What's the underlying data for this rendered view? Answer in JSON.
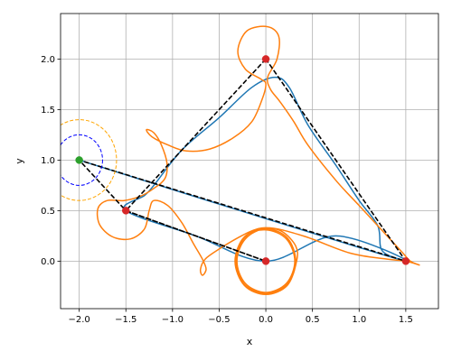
{
  "chart_data": {
    "type": "line",
    "title": "",
    "xlabel": "x",
    "ylabel": "y",
    "xlim": [
      -2.2,
      1.85
    ],
    "ylim": [
      -0.47,
      2.45
    ],
    "xticks": [
      -2.0,
      -1.5,
      -1.0,
      -0.5,
      0.0,
      0.5,
      1.0,
      1.5
    ],
    "xtick_labels": [
      "−2.0",
      "−1.5",
      "−1.0",
      "−0.5",
      "0.0",
      "0.5",
      "1.0",
      "1.5"
    ],
    "yticks": [
      0.0,
      0.5,
      1.0,
      1.5,
      2.0
    ],
    "ytick_labels": [
      "0.0",
      "0.5",
      "1.0",
      "1.5",
      "2.0"
    ],
    "grid": true,
    "colors": {
      "blue_path": "#1f77b4",
      "orange_path": "#ff7f0e",
      "dashed_path": "#000000",
      "red_points": "#d62728",
      "green_point": "#2ca02c",
      "blue_circle": "#0000ff",
      "orange_circle": "#ffa500"
    },
    "series": [
      {
        "kind": "line",
        "color": "#1f77b4",
        "points": [
          [
            1.5,
            0.0
          ],
          [
            1.25,
            0.1
          ],
          [
            1.2,
            0.35
          ],
          [
            1.0,
            0.6
          ],
          [
            0.75,
            0.95
          ],
          [
            0.45,
            1.35
          ],
          [
            0.25,
            1.72
          ],
          [
            0.1,
            1.82
          ],
          [
            -0.15,
            1.72
          ],
          [
            -0.5,
            1.42
          ],
          [
            -0.9,
            1.1
          ],
          [
            -1.2,
            0.75
          ],
          [
            -1.3,
            0.65
          ],
          [
            -1.5,
            0.5
          ],
          [
            -0.75,
            0.25
          ],
          [
            0.0,
            0.0
          ],
          [
            0.75,
            0.25
          ],
          [
            1.5,
            0.0
          ],
          [
            0.0,
            0.42
          ],
          [
            -2.0,
            1.0
          ]
        ]
      },
      {
        "kind": "line",
        "color": "#ff7f0e",
        "points": [
          [
            1.65,
            -0.04
          ],
          [
            1.55,
            0.0
          ],
          [
            1.45,
            0.1
          ],
          [
            1.25,
            0.3
          ],
          [
            1.0,
            0.55
          ],
          [
            0.75,
            0.8
          ],
          [
            0.45,
            1.15
          ],
          [
            0.3,
            1.38
          ],
          [
            0.15,
            1.58
          ],
          [
            0.05,
            1.7
          ],
          [
            0.02,
            1.82
          ],
          [
            0.12,
            2.0
          ],
          [
            0.14,
            2.22
          ],
          [
            0.02,
            2.32
          ],
          [
            -0.2,
            2.28
          ],
          [
            -0.3,
            2.08
          ],
          [
            -0.22,
            1.9
          ],
          [
            -0.05,
            1.8
          ],
          [
            0.0,
            1.75
          ],
          [
            -0.04,
            1.6
          ],
          [
            -0.15,
            1.38
          ],
          [
            -0.35,
            1.22
          ],
          [
            -0.6,
            1.11
          ],
          [
            -0.85,
            1.09
          ],
          [
            -1.05,
            1.15
          ],
          [
            -1.22,
            1.23
          ],
          [
            -1.28,
            1.3
          ],
          [
            -1.2,
            1.27
          ],
          [
            -1.12,
            1.15
          ],
          [
            -1.06,
            0.97
          ],
          [
            -1.08,
            0.82
          ],
          [
            -1.2,
            0.72
          ],
          [
            -1.35,
            0.64
          ],
          [
            -1.52,
            0.6
          ],
          [
            -1.7,
            0.6
          ],
          [
            -1.8,
            0.52
          ],
          [
            -1.78,
            0.36
          ],
          [
            -1.64,
            0.24
          ],
          [
            -1.45,
            0.22
          ],
          [
            -1.3,
            0.32
          ],
          [
            -1.25,
            0.5
          ],
          [
            -1.2,
            0.6
          ],
          [
            -1.05,
            0.55
          ],
          [
            -0.9,
            0.38
          ],
          [
            -0.78,
            0.18
          ],
          [
            -0.68,
            0.02
          ],
          [
            -0.64,
            -0.08
          ],
          [
            -0.68,
            -0.14
          ],
          [
            -0.7,
            -0.08
          ],
          [
            -0.65,
            0.02
          ],
          [
            -0.5,
            0.12
          ],
          [
            -0.32,
            0.22
          ],
          [
            -0.15,
            0.3
          ],
          [
            0.0,
            0.33
          ],
          [
            0.18,
            0.29
          ],
          [
            0.32,
            0.15
          ],
          [
            0.33,
            0.0
          ],
          [
            0.23,
            -0.24
          ],
          [
            0.0,
            -0.33
          ],
          [
            -0.23,
            -0.24
          ],
          [
            -0.33,
            0.0
          ],
          [
            -0.23,
            0.24
          ],
          [
            0.0,
            0.31
          ],
          [
            0.22,
            0.22
          ],
          [
            0.31,
            0.0
          ],
          [
            0.22,
            -0.22
          ],
          [
            0.0,
            -0.31
          ],
          [
            -0.22,
            -0.22
          ],
          [
            -0.31,
            0.0
          ],
          [
            -0.22,
            0.22
          ],
          [
            0.0,
            0.32
          ],
          [
            0.23,
            0.23
          ],
          [
            0.32,
            0.0
          ],
          [
            0.23,
            -0.23
          ],
          [
            0.0,
            -0.32
          ],
          [
            -0.23,
            -0.23
          ],
          [
            -0.32,
            0.0
          ],
          [
            -0.23,
            0.23
          ],
          [
            0.0,
            0.33
          ],
          [
            0.4,
            0.25
          ],
          [
            0.9,
            0.08
          ],
          [
            1.3,
            0.02
          ],
          [
            1.5,
            0.0
          ],
          [
            1.65,
            -0.04
          ]
        ]
      },
      {
        "kind": "dashed",
        "color": "#000000",
        "points": [
          [
            0.0,
            2.0
          ],
          [
            -1.5,
            0.5
          ],
          [
            0.0,
            0.0
          ],
          [
            -1.5,
            0.5
          ],
          [
            -2.0,
            1.0
          ],
          [
            1.5,
            0.0
          ],
          [
            0.0,
            2.0
          ]
        ]
      }
    ],
    "circles": [
      {
        "color": "#0000ff",
        "center": [
          -2.0,
          1.0
        ],
        "radius": 0.25
      },
      {
        "color": "#ffa500",
        "center": [
          -2.0,
          1.0
        ],
        "radius": 0.4
      }
    ],
    "points": [
      {
        "color": "#d62728",
        "x": 0.0,
        "y": 2.0
      },
      {
        "color": "#d62728",
        "x": -1.5,
        "y": 0.5
      },
      {
        "color": "#d62728",
        "x": 0.0,
        "y": 0.0
      },
      {
        "color": "#d62728",
        "x": 1.5,
        "y": 0.0
      },
      {
        "color": "#2ca02c",
        "x": -2.0,
        "y": 1.0
      }
    ]
  }
}
